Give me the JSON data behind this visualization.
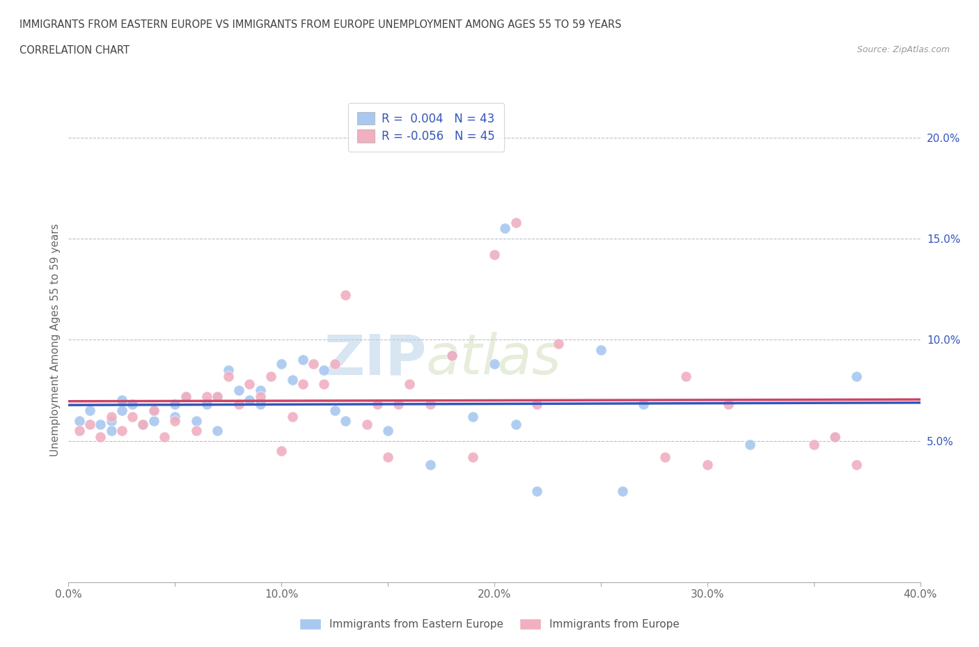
{
  "title_line1": "IMMIGRANTS FROM EASTERN EUROPE VS IMMIGRANTS FROM EUROPE UNEMPLOYMENT AMONG AGES 55 TO 59 YEARS",
  "title_line2": "CORRELATION CHART",
  "source_text": "Source: ZipAtlas.com",
  "ylabel": "Unemployment Among Ages 55 to 59 years",
  "xlim": [
    0.0,
    0.4
  ],
  "ylim": [
    -0.02,
    0.22
  ],
  "xtick_labels": [
    "0.0%",
    "",
    "10.0%",
    "",
    "20.0%",
    "",
    "30.0%",
    "",
    "40.0%"
  ],
  "xtick_vals": [
    0.0,
    0.05,
    0.1,
    0.15,
    0.2,
    0.25,
    0.3,
    0.35,
    0.4
  ],
  "ytick_labels": [
    "5.0%",
    "10.0%",
    "15.0%",
    "20.0%"
  ],
  "ytick_vals": [
    0.05,
    0.1,
    0.15,
    0.2
  ],
  "grid_color": "#bbbbcc",
  "background_color": "#ffffff",
  "watermark_zip": "ZIP",
  "watermark_atlas": "atlas",
  "series1_color": "#a8c8f0",
  "series2_color": "#f0b0c0",
  "series1_line_color": "#3355bb",
  "series2_line_color": "#cc4466",
  "series1_R": 0.004,
  "series1_N": 43,
  "series2_R": -0.056,
  "series2_N": 45,
  "series1_label": "Immigrants from Eastern Europe",
  "series2_label": "Immigrants from Europe",
  "legend_R_color": "#3355bb",
  "title_color": "#404040",
  "series1_x": [
    0.005,
    0.01,
    0.015,
    0.02,
    0.02,
    0.025,
    0.025,
    0.03,
    0.035,
    0.04,
    0.04,
    0.05,
    0.05,
    0.055,
    0.06,
    0.065,
    0.07,
    0.07,
    0.075,
    0.08,
    0.085,
    0.09,
    0.09,
    0.1,
    0.105,
    0.11,
    0.12,
    0.125,
    0.13,
    0.15,
    0.17,
    0.18,
    0.19,
    0.2,
    0.205,
    0.21,
    0.22,
    0.25,
    0.26,
    0.27,
    0.32,
    0.36,
    0.37
  ],
  "series1_y": [
    0.06,
    0.065,
    0.058,
    0.06,
    0.055,
    0.065,
    0.07,
    0.068,
    0.058,
    0.06,
    0.065,
    0.062,
    0.068,
    0.072,
    0.06,
    0.068,
    0.055,
    0.072,
    0.085,
    0.075,
    0.07,
    0.068,
    0.075,
    0.088,
    0.08,
    0.09,
    0.085,
    0.065,
    0.06,
    0.055,
    0.038,
    0.092,
    0.062,
    0.088,
    0.155,
    0.058,
    0.025,
    0.095,
    0.025,
    0.068,
    0.048,
    0.052,
    0.082
  ],
  "series2_x": [
    0.005,
    0.01,
    0.015,
    0.02,
    0.025,
    0.03,
    0.035,
    0.04,
    0.045,
    0.05,
    0.055,
    0.06,
    0.065,
    0.07,
    0.075,
    0.08,
    0.085,
    0.09,
    0.095,
    0.1,
    0.105,
    0.11,
    0.115,
    0.12,
    0.125,
    0.13,
    0.14,
    0.145,
    0.15,
    0.155,
    0.16,
    0.17,
    0.18,
    0.19,
    0.2,
    0.21,
    0.22,
    0.23,
    0.28,
    0.29,
    0.3,
    0.31,
    0.35,
    0.36,
    0.37
  ],
  "series2_y": [
    0.055,
    0.058,
    0.052,
    0.062,
    0.055,
    0.062,
    0.058,
    0.065,
    0.052,
    0.06,
    0.072,
    0.055,
    0.072,
    0.072,
    0.082,
    0.068,
    0.078,
    0.072,
    0.082,
    0.045,
    0.062,
    0.078,
    0.088,
    0.078,
    0.088,
    0.122,
    0.058,
    0.068,
    0.042,
    0.068,
    0.078,
    0.068,
    0.092,
    0.042,
    0.142,
    0.158,
    0.068,
    0.098,
    0.042,
    0.082,
    0.038,
    0.068,
    0.048,
    0.052,
    0.038
  ]
}
